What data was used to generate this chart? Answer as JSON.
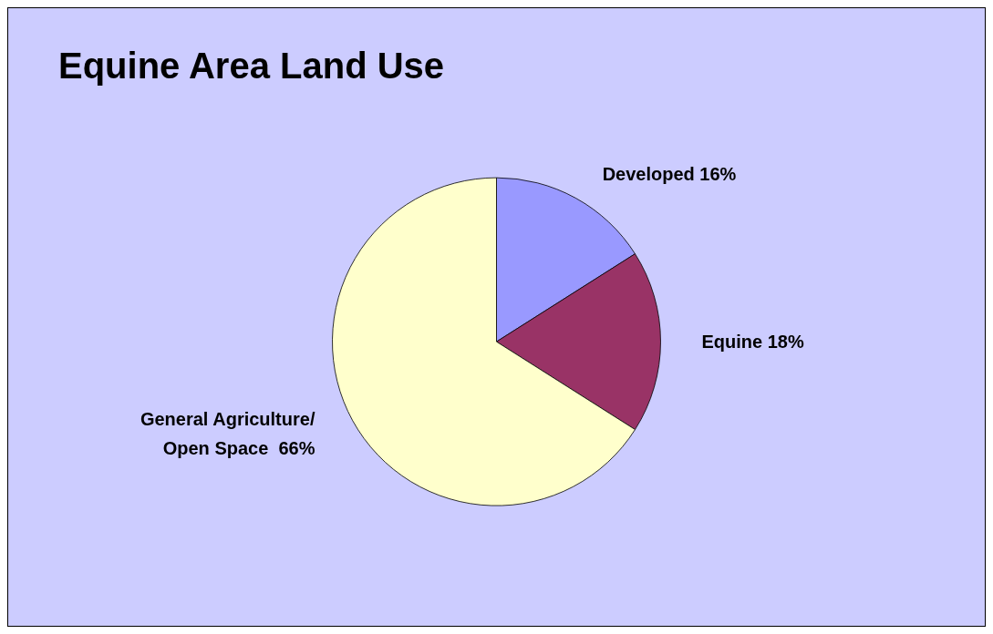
{
  "chart_data": {
    "type": "pie",
    "title": "Equine Area Land Use",
    "categories": [
      "Developed",
      "Equine",
      "General Agriculture/\nOpen Space "
    ],
    "values": [
      16,
      18,
      66
    ],
    "value_labels": [
      "16%",
      "18%",
      "66%"
    ],
    "colors": [
      "#9999ff",
      "#993366",
      "#ffffcc"
    ],
    "legend": false
  }
}
